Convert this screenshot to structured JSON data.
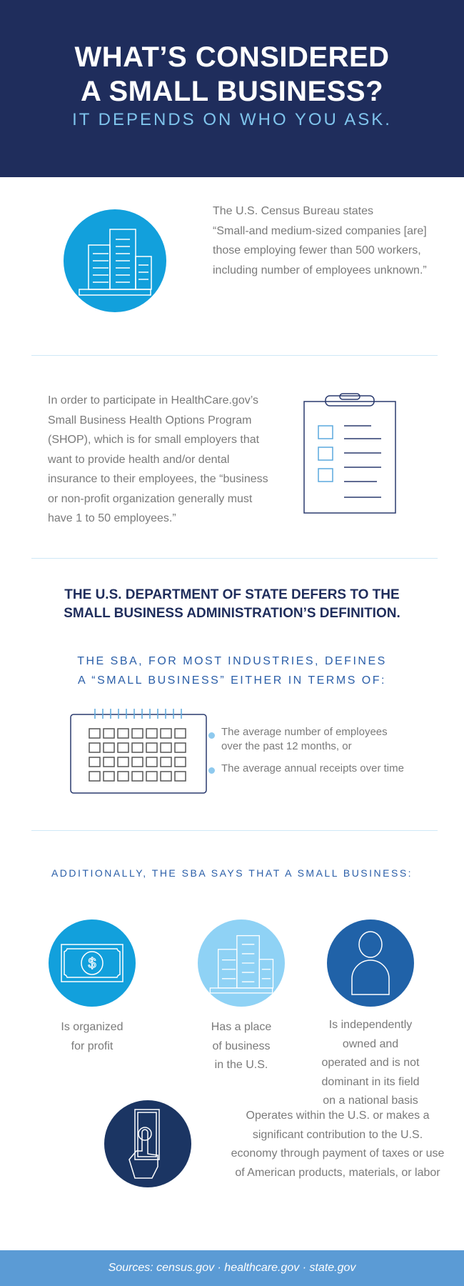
{
  "header": {
    "title_line1": "WHAT’S CONSIDERED",
    "title_line2": "A SMALL BUSINESS?",
    "subtitle": "IT DEPENDS ON WHO YOU ASK."
  },
  "census": {
    "lines": [
      "The U.S. Census Bureau states",
      "“Small-and medium-sized companies [are]",
      "those employing fewer than 500 workers,",
      "including number of employees unknown.”"
    ],
    "icon": "building-icon"
  },
  "healthcare": {
    "lines": [
      "In order to participate in HealthCare.gov’s",
      "Small Business Health Options Program",
      "(SHOP), which is for small employers that",
      "want to provide health and/or dental",
      "insurance to their employees, the “business",
      "or non-profit organization generally must",
      "have 1 to 50 employees.”"
    ],
    "icon": "clipboard-icon"
  },
  "state": {
    "heading_line1": "THE U.S. DEPARTMENT OF STATE DEFERS TO THE",
    "heading_line2": "SMALL BUSINESS ADMINISTRATION’S DEFINITION.",
    "sub_line1": "THE SBA, FOR MOST INDUSTRIES, DEFINES",
    "sub_line2": "A “SMALL BUSINESS” EITHER IN TERMS OF:",
    "bullets": [
      [
        "The average number of employees",
        "over the past 12 months, or"
      ],
      [
        "The average annual receipts over time"
      ]
    ],
    "icon": "calendar-icon"
  },
  "additionally": {
    "heading": "ADDITIONALLY, THE SBA SAYS THAT A SMALL BUSINESS:",
    "items": [
      {
        "lines": [
          "Is organized",
          "for profit"
        ],
        "icon": "dollar-bill-icon",
        "color": "#12a0dc"
      },
      {
        "lines": [
          "Has a place",
          "of business",
          "in the U.S."
        ],
        "icon": "building-icon",
        "color": "#8fd2f5"
      },
      {
        "lines": [
          "Is independently",
          "owned and",
          "operated and is not",
          "dominant in its field",
          "on a national basis"
        ],
        "icon": "person-icon",
        "color": "#2062a8"
      },
      {
        "lines": [
          "Operates within the U.S. or makes a",
          "significant contribution to the U.S.",
          "economy through payment of taxes or use",
          "of American products, materials, or labor"
        ],
        "icon": "hand-money-icon",
        "color": "#1b3563"
      }
    ]
  },
  "footer": {
    "sources": "Sources: census.gov · healthcare.gov · state.gov"
  },
  "colors": {
    "navy": "#1f2d5c",
    "light_blue": "#7fc4ec",
    "footer": "#5b9bd5"
  }
}
